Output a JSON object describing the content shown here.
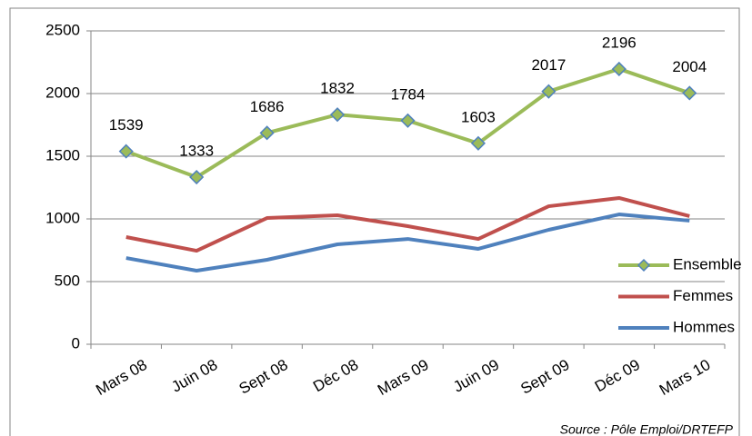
{
  "chart_data": {
    "type": "line",
    "categories": [
      "Mars 08",
      "Juin 08",
      "Sept 08",
      "Déc 08",
      "Mars 09",
      "Juin 09",
      "Sept 09",
      "Déc 09",
      "Mars 10"
    ],
    "series": [
      {
        "name": "Ensemble",
        "color": "#9bbb59",
        "marker_edge": "#4f81bd",
        "values": [
          1539,
          1333,
          1686,
          1832,
          1784,
          1603,
          2017,
          2196,
          2004
        ],
        "data_labels": true
      },
      {
        "name": "Femmes",
        "color": "#c0504d",
        "values": [
          855,
          746,
          1007,
          1029,
          942,
          840,
          1101,
          1167,
          1022
        ]
      },
      {
        "name": "Hommes",
        "color": "#4f81bd",
        "values": [
          688,
          587,
          674,
          797,
          840,
          761,
          913,
          1036,
          986
        ]
      }
    ],
    "ylim": [
      0,
      2500
    ],
    "yticks": [
      0,
      500,
      1000,
      1500,
      2000,
      2500
    ],
    "grid": true,
    "legend": "right",
    "source": "Source : Pôle Emploi/DRTEFP"
  }
}
